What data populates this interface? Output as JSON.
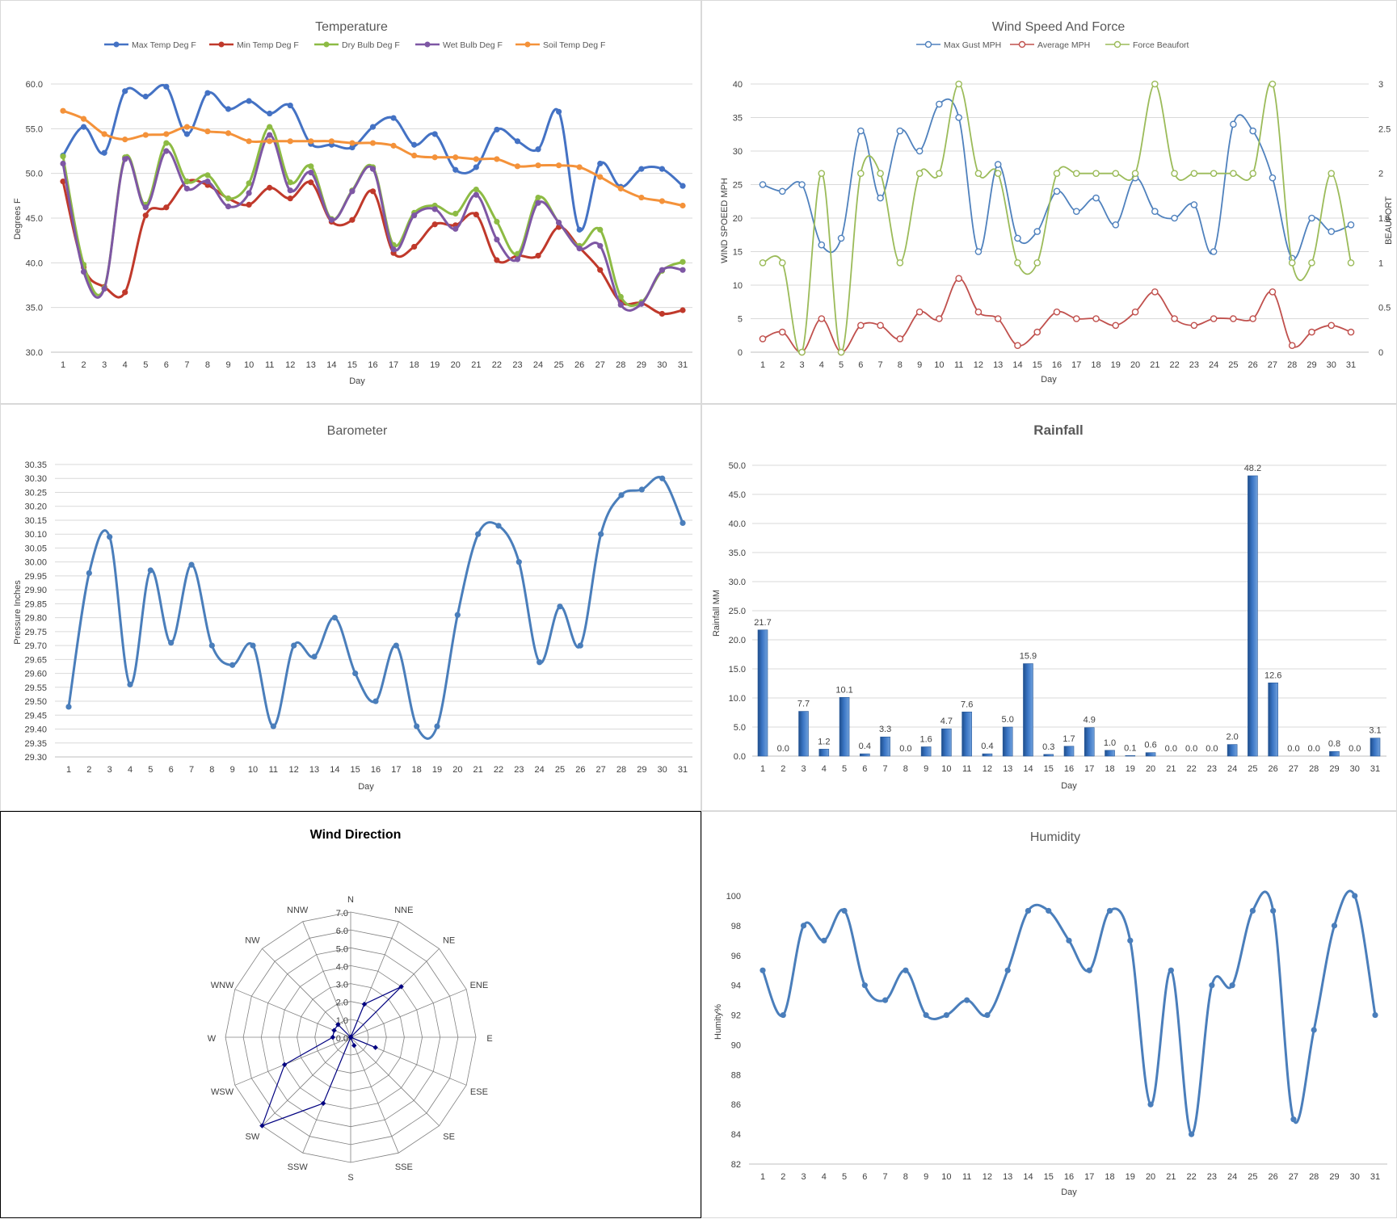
{
  "chart_data": [
    {
      "id": "temperature",
      "type": "line",
      "title": "Temperature",
      "xlabel": "Day",
      "ylabel": "Degrees F",
      "ylim": [
        30,
        60
      ],
      "yticks": [
        "30.0",
        "35.0",
        "40.0",
        "45.0",
        "50.0",
        "55.0",
        "60.0"
      ],
      "grid": true,
      "legend": "top",
      "x": [
        1,
        2,
        3,
        4,
        5,
        6,
        7,
        8,
        9,
        10,
        11,
        12,
        13,
        14,
        15,
        16,
        17,
        18,
        19,
        20,
        21,
        22,
        23,
        24,
        25,
        26,
        27,
        28,
        29,
        30,
        31
      ],
      "series": [
        {
          "name": "Max Temp Deg F",
          "color": "#4472c4",
          "marker": "dot",
          "values": [
            52.0,
            55.2,
            52.3,
            59.2,
            58.6,
            59.7,
            54.4,
            59.0,
            57.2,
            58.1,
            56.7,
            57.6,
            53.3,
            53.2,
            52.9,
            55.2,
            56.2,
            53.2,
            54.4,
            50.4,
            50.7,
            54.9,
            53.6,
            52.7,
            56.9,
            43.7,
            51.1,
            48.5,
            50.5,
            50.5,
            48.6
          ]
        },
        {
          "name": "Min Temp Deg F",
          "color": "#c0392b",
          "marker": "dot",
          "values": [
            49.1,
            39.5,
            37.3,
            36.7,
            45.3,
            46.2,
            49.1,
            48.7,
            47.2,
            46.5,
            48.4,
            47.2,
            49.0,
            44.6,
            44.8,
            48.0,
            41.1,
            41.8,
            44.3,
            44.2,
            45.4,
            40.3,
            40.8,
            40.8,
            44.0,
            41.7,
            39.2,
            35.6,
            35.5,
            34.3,
            34.7
          ]
        },
        {
          "name": "Dry Bulb Deg F",
          "color": "#8dbb44",
          "marker": "dot",
          "values": [
            51.9,
            39.8,
            37.2,
            51.8,
            46.5,
            53.4,
            49.1,
            49.8,
            47.2,
            48.9,
            55.2,
            49.0,
            50.8,
            44.9,
            48.1,
            50.7,
            42.0,
            45.6,
            46.4,
            45.5,
            48.2,
            44.6,
            41.0,
            47.3,
            44.5,
            41.9,
            43.7,
            36.2,
            35.6,
            39.1,
            40.1
          ]
        },
        {
          "name": "Wet Bulb Deg F",
          "color": "#7e57a4",
          "marker": "dot",
          "values": [
            51.1,
            39.0,
            37.1,
            51.6,
            46.2,
            52.5,
            48.3,
            49.1,
            46.3,
            47.8,
            54.3,
            48.1,
            50.1,
            44.8,
            48.0,
            50.5,
            41.5,
            45.3,
            46.0,
            43.8,
            47.6,
            42.6,
            40.4,
            46.7,
            44.5,
            41.6,
            41.9,
            35.3,
            35.4,
            39.2,
            39.2
          ]
        },
        {
          "name": "Soil Temp Deg F",
          "color": "#f4923a",
          "marker": "dot",
          "values": [
            57.0,
            56.1,
            54.4,
            53.8,
            54.3,
            54.4,
            55.2,
            54.7,
            54.5,
            53.6,
            53.6,
            53.6,
            53.6,
            53.6,
            53.4,
            53.4,
            53.1,
            52.0,
            51.8,
            51.8,
            51.6,
            51.6,
            50.8,
            50.9,
            50.9,
            50.7,
            49.6,
            48.3,
            47.3,
            46.9,
            46.4
          ]
        }
      ]
    },
    {
      "id": "wind",
      "type": "line",
      "title": "Wind Speed And Force",
      "xlabel": "Day",
      "ylabel": "WIND SPOEED MPH",
      "y2label": "BEAUFORT",
      "ylim": [
        0,
        40
      ],
      "y2lim": [
        0,
        3
      ],
      "yticks": [
        "0",
        "5",
        "10",
        "15",
        "20",
        "25",
        "30",
        "35",
        "40"
      ],
      "y2ticks": [
        "0",
        "0.5",
        "1",
        "1.5",
        "2",
        "2.5",
        "3"
      ],
      "grid": true,
      "legend": "top",
      "x": [
        1,
        2,
        3,
        4,
        5,
        6,
        7,
        8,
        9,
        10,
        11,
        12,
        13,
        14,
        15,
        16,
        17,
        18,
        19,
        20,
        21,
        22,
        23,
        24,
        25,
        26,
        27,
        28,
        29,
        30,
        31
      ],
      "series": [
        {
          "name": "Max Gust MPH",
          "color": "#4f81bd",
          "axis": "left",
          "marker": "open",
          "values": [
            25,
            24,
            25,
            16,
            17,
            33,
            23,
            33,
            30,
            37,
            35,
            15,
            28,
            17,
            18,
            24,
            21,
            23,
            19,
            26,
            21,
            20,
            22,
            15,
            34,
            33,
            26,
            14,
            20,
            18,
            19
          ]
        },
        {
          "name": "Average MPH",
          "color": "#c0504d",
          "axis": "left",
          "marker": "open",
          "values": [
            2,
            3,
            0,
            5,
            0,
            4,
            4,
            2,
            6,
            5,
            11,
            6,
            5,
            1,
            3,
            6,
            5,
            5,
            4,
            6,
            9,
            5,
            4,
            5,
            5,
            5,
            9,
            1,
            3,
            4,
            3
          ]
        },
        {
          "name": "Force Beaufort",
          "color": "#9bbb59",
          "axis": "right",
          "marker": "open",
          "values": [
            1,
            1,
            0,
            2,
            0,
            2,
            2,
            1,
            2,
            2,
            3,
            2,
            2,
            1,
            1,
            2,
            2,
            2,
            2,
            2,
            3,
            2,
            2,
            2,
            2,
            2,
            3,
            1,
            1,
            2,
            1
          ]
        }
      ]
    },
    {
      "id": "barometer",
      "type": "line",
      "title": "Barometer",
      "xlabel": "Day",
      "ylabel": "Pressure Inches",
      "ylim": [
        29.3,
        30.35
      ],
      "yticks": [
        "29.30",
        "29.35",
        "29.40",
        "29.45",
        "29.50",
        "29.55",
        "29.60",
        "29.65",
        "29.70",
        "29.75",
        "29.80",
        "29.85",
        "29.90",
        "29.95",
        "30.00",
        "30.05",
        "30.10",
        "30.15",
        "30.20",
        "30.25",
        "30.30",
        "30.35"
      ],
      "grid": true,
      "x": [
        1,
        2,
        3,
        4,
        5,
        6,
        7,
        8,
        9,
        10,
        11,
        12,
        13,
        14,
        15,
        16,
        17,
        18,
        19,
        20,
        21,
        22,
        23,
        24,
        25,
        26,
        27,
        28,
        29,
        30,
        31
      ],
      "series": [
        {
          "name": "",
          "color": "#4a7ebb",
          "marker": "dot",
          "values": [
            29.48,
            29.96,
            30.09,
            29.56,
            29.97,
            29.71,
            29.99,
            29.7,
            29.63,
            29.7,
            29.41,
            29.7,
            29.66,
            29.8,
            29.6,
            29.5,
            29.7,
            29.41,
            29.41,
            29.81,
            30.1,
            30.13,
            30.0,
            29.64,
            29.84,
            29.7,
            30.1,
            30.24,
            30.26,
            30.3,
            30.14
          ]
        }
      ]
    },
    {
      "id": "rainfall",
      "type": "bar",
      "title": "Rainfall",
      "xlabel": "Day",
      "ylabel": "Rainfall MM",
      "ylim": [
        0,
        50
      ],
      "yticks": [
        "0.0",
        "5.0",
        "10.0",
        "15.0",
        "20.0",
        "25.0",
        "30.0",
        "35.0",
        "40.0",
        "45.0",
        "50.0"
      ],
      "grid": true,
      "color": "#3a75c4",
      "categories": [
        "1",
        "2",
        "3",
        "4",
        "5",
        "6",
        "7",
        "8",
        "9",
        "10",
        "11",
        "12",
        "13",
        "14",
        "15",
        "16",
        "17",
        "18",
        "19",
        "20",
        "21",
        "22",
        "23",
        "24",
        "25",
        "26",
        "27",
        "28",
        "29",
        "30",
        "31"
      ],
      "values": [
        21.7,
        0.0,
        7.7,
        1.2,
        10.1,
        0.4,
        3.3,
        0.0,
        1.6,
        4.7,
        7.6,
        0.4,
        5.0,
        15.9,
        0.3,
        1.7,
        4.9,
        1.0,
        0.1,
        0.6,
        0.0,
        0.0,
        0.0,
        2.0,
        48.2,
        12.6,
        0.0,
        0.0,
        0.8,
        0.0,
        3.1
      ],
      "labels": [
        "21.7",
        "0.0",
        "7.7",
        "1.2",
        "10.1",
        "0.4",
        "3.3",
        "0.0",
        "1.6",
        "4.7",
        "7.6",
        "0.4",
        "5.0",
        "15.9",
        "0.3",
        "1.7",
        "4.9",
        "1.0",
        "0.1",
        "0.6",
        "0.0",
        "0.0",
        "0.0",
        "2.0",
        "48.2",
        "12.6",
        "0.0",
        "0.0",
        "0.8",
        "0.0",
        "3.1"
      ]
    },
    {
      "id": "winddir",
      "type": "radar",
      "title": "Wind Direction",
      "rlim": [
        0,
        7
      ],
      "rticks": [
        "0.0",
        "1.0",
        "2.0",
        "3.0",
        "4.0",
        "5.0",
        "6.0",
        "7.0"
      ],
      "color": "#000080",
      "directions": [
        "N",
        "NNE",
        "NE",
        "ENE",
        "E",
        "ESE",
        "SE",
        "SSE",
        "S",
        "SSW",
        "SW",
        "WSW",
        "W",
        "WNW",
        "NW",
        "NNW"
      ],
      "values": [
        0,
        2,
        4,
        0,
        0,
        1.5,
        0,
        0.5,
        0,
        4,
        7,
        4,
        1,
        1,
        1,
        0
      ]
    },
    {
      "id": "humidity",
      "type": "line",
      "title": "Humidity",
      "xlabel": "Day",
      "ylabel": "Humity%",
      "ylim": [
        82,
        100
      ],
      "yticks": [
        "82",
        "84",
        "86",
        "88",
        "90",
        "92",
        "94",
        "96",
        "98",
        "100"
      ],
      "grid": false,
      "x": [
        1,
        2,
        3,
        4,
        5,
        6,
        7,
        8,
        9,
        10,
        11,
        12,
        13,
        14,
        15,
        16,
        17,
        18,
        19,
        20,
        21,
        22,
        23,
        24,
        25,
        26,
        27,
        28,
        29,
        30,
        31
      ],
      "series": [
        {
          "name": "",
          "color": "#4a7ebb",
          "marker": "dot",
          "values": [
            95,
            92,
            98,
            97,
            99,
            94,
            93,
            95,
            92,
            92,
            93,
            92,
            95,
            99,
            99,
            97,
            95,
            99,
            97,
            86,
            95,
            84,
            94,
            94,
            99,
            99,
            85,
            91,
            98,
            100,
            92
          ]
        }
      ]
    }
  ]
}
